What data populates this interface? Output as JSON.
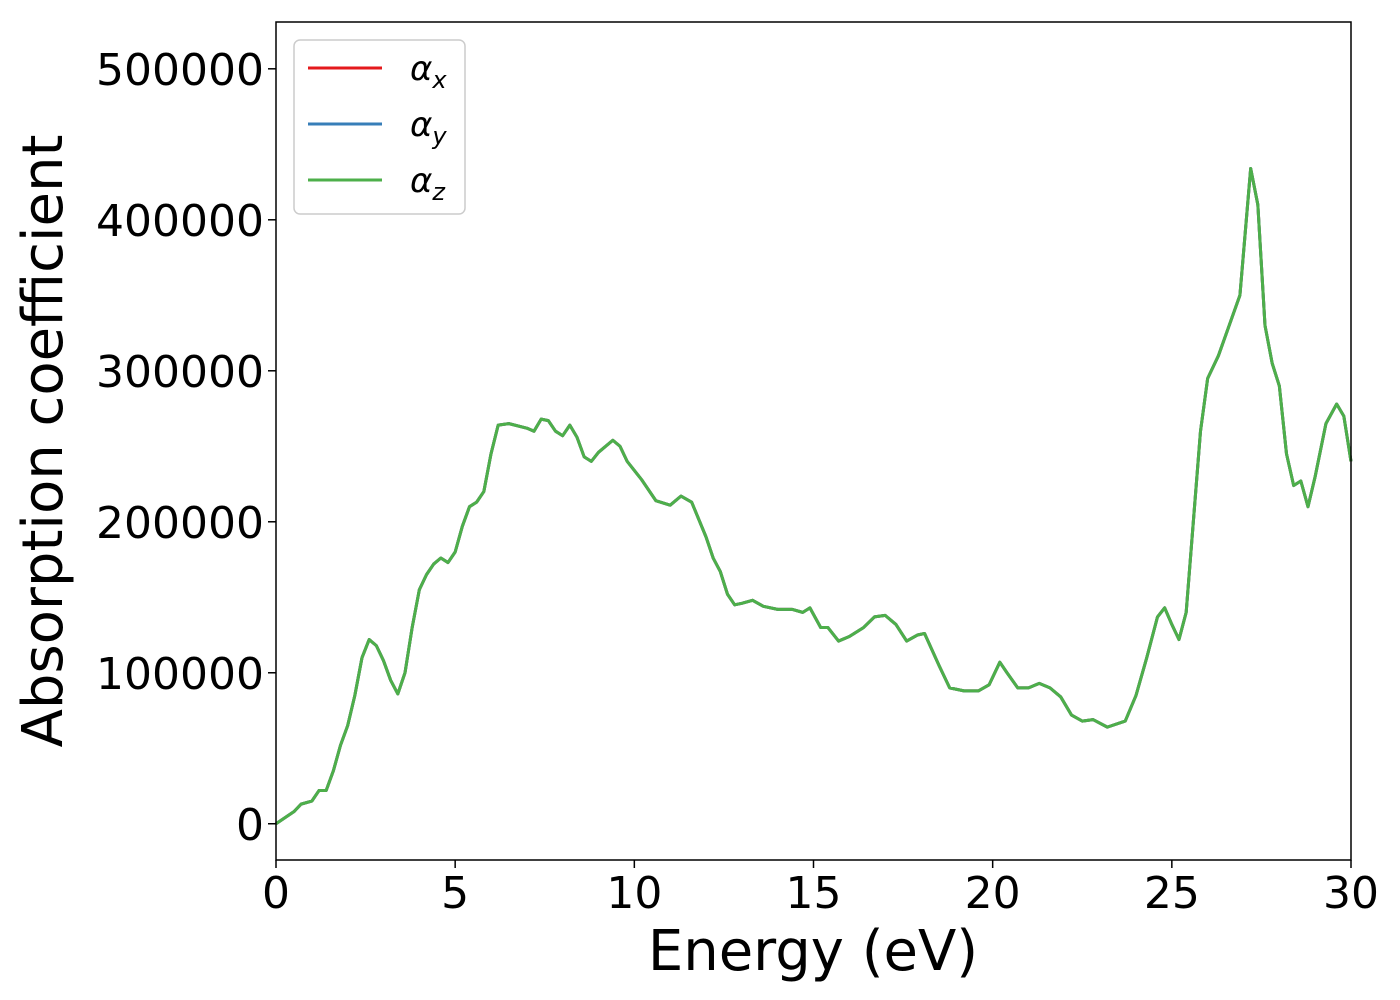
{
  "chart_data": {
    "type": "line",
    "xlabel": "Energy (eV)",
    "ylabel": "Absorption coefficient",
    "x": [
      0,
      0.5,
      0.7,
      1.0,
      1.2,
      1.4,
      1.6,
      1.8,
      2.0,
      2.2,
      2.4,
      2.6,
      2.8,
      3.0,
      3.2,
      3.4,
      3.6,
      3.8,
      4.0,
      4.2,
      4.4,
      4.6,
      4.8,
      5.0,
      5.2,
      5.4,
      5.6,
      5.8,
      6.0,
      6.2,
      6.5,
      7.0,
      7.2,
      7.4,
      7.6,
      7.8,
      8.0,
      8.2,
      8.4,
      8.6,
      8.8,
      9.0,
      9.4,
      9.6,
      9.8,
      10.2,
      10.6,
      11.0,
      11.3,
      11.6,
      12.0,
      12.2,
      12.4,
      12.6,
      12.8,
      13.0,
      13.3,
      13.6,
      14.0,
      14.4,
      14.7,
      14.9,
      15.2,
      15.4,
      15.7,
      16.0,
      16.4,
      16.7,
      17.0,
      17.3,
      17.6,
      17.9,
      18.1,
      18.5,
      18.8,
      19.2,
      19.6,
      19.9,
      20.2,
      20.4,
      20.7,
      21.0,
      21.3,
      21.6,
      21.9,
      22.2,
      22.5,
      22.8,
      23.2,
      23.7,
      24.0,
      24.3,
      24.6,
      24.8,
      25.0,
      25.2,
      25.4,
      25.6,
      25.8,
      26.0,
      26.3,
      26.6,
      26.9,
      27.2,
      27.4,
      27.6,
      27.8,
      28.0,
      28.2,
      28.4,
      28.6,
      28.8,
      29.0,
      29.3,
      29.6,
      29.8,
      30.0
    ],
    "series": [
      {
        "name": "αx",
        "color": "#e41a1c",
        "values": [
          0,
          8000,
          13000,
          15000,
          22000,
          22000,
          35000,
          52000,
          65000,
          85000,
          110000,
          122000,
          118000,
          108000,
          95000,
          86000,
          100000,
          130000,
          155000,
          165000,
          172000,
          176000,
          173000,
          180000,
          197000,
          210000,
          213000,
          220000,
          245000,
          264000,
          265000,
          262000,
          260000,
          268000,
          267000,
          260000,
          257000,
          264000,
          256000,
          243000,
          240000,
          246000,
          254000,
          250000,
          240000,
          228000,
          214000,
          211000,
          217000,
          213000,
          190000,
          176000,
          167000,
          152000,
          145000,
          146000,
          148000,
          144000,
          142000,
          142000,
          140000,
          143000,
          130000,
          130000,
          121000,
          124000,
          130000,
          137000,
          138000,
          132000,
          121000,
          125000,
          126000,
          105000,
          90000,
          88000,
          88000,
          92000,
          107000,
          100000,
          90000,
          90000,
          93000,
          90000,
          84000,
          72000,
          68000,
          69000,
          64000,
          68000,
          85000,
          110000,
          137000,
          143000,
          132000,
          122000,
          140000,
          200000,
          260000,
          295000,
          310000,
          330000,
          350000,
          434000,
          410000,
          330000,
          305000,
          290000,
          245000,
          224000,
          227000,
          210000,
          230000,
          265000,
          278000,
          270000,
          240000
        ]
      },
      {
        "name": "αy",
        "color": "#377eb8",
        "values": [
          0,
          8000,
          13000,
          15000,
          22000,
          22000,
          35000,
          52000,
          65000,
          85000,
          110000,
          122000,
          118000,
          108000,
          95000,
          86000,
          100000,
          130000,
          155000,
          165000,
          172000,
          176000,
          173000,
          180000,
          197000,
          210000,
          213000,
          220000,
          245000,
          264000,
          265000,
          262000,
          260000,
          268000,
          267000,
          260000,
          257000,
          264000,
          256000,
          243000,
          240000,
          246000,
          254000,
          250000,
          240000,
          228000,
          214000,
          211000,
          217000,
          213000,
          190000,
          176000,
          167000,
          152000,
          145000,
          146000,
          148000,
          144000,
          142000,
          142000,
          140000,
          143000,
          130000,
          130000,
          121000,
          124000,
          130000,
          137000,
          138000,
          132000,
          121000,
          125000,
          126000,
          105000,
          90000,
          88000,
          88000,
          92000,
          107000,
          100000,
          90000,
          90000,
          93000,
          90000,
          84000,
          72000,
          68000,
          69000,
          64000,
          68000,
          85000,
          110000,
          137000,
          143000,
          132000,
          122000,
          140000,
          200000,
          260000,
          295000,
          310000,
          330000,
          350000,
          434000,
          410000,
          330000,
          305000,
          290000,
          245000,
          224000,
          227000,
          210000,
          230000,
          265000,
          278000,
          270000,
          240000
        ]
      },
      {
        "name": "αz",
        "color": "#4daf4a",
        "values": [
          0,
          8000,
          13000,
          15000,
          22000,
          22000,
          35000,
          52000,
          65000,
          85000,
          110000,
          122000,
          118000,
          108000,
          95000,
          86000,
          100000,
          130000,
          155000,
          165000,
          172000,
          176000,
          173000,
          180000,
          197000,
          210000,
          213000,
          220000,
          245000,
          264000,
          265000,
          262000,
          260000,
          268000,
          267000,
          260000,
          257000,
          264000,
          256000,
          243000,
          240000,
          246000,
          254000,
          250000,
          240000,
          228000,
          214000,
          211000,
          217000,
          213000,
          190000,
          176000,
          167000,
          152000,
          145000,
          146000,
          148000,
          144000,
          142000,
          142000,
          140000,
          143000,
          130000,
          130000,
          121000,
          124000,
          130000,
          137000,
          138000,
          132000,
          121000,
          125000,
          126000,
          105000,
          90000,
          88000,
          88000,
          92000,
          107000,
          100000,
          90000,
          90000,
          93000,
          90000,
          84000,
          72000,
          68000,
          69000,
          64000,
          68000,
          85000,
          110000,
          137000,
          143000,
          132000,
          122000,
          140000,
          200000,
          260000,
          295000,
          310000,
          330000,
          350000,
          434000,
          410000,
          330000,
          305000,
          290000,
          245000,
          224000,
          227000,
          210000,
          230000,
          265000,
          278000,
          270000,
          240000
        ]
      }
    ],
    "xlim": [
      0,
      30
    ],
    "xticks": [
      0,
      5,
      10,
      15,
      20,
      25,
      30
    ],
    "ylim": [
      -24000,
      531000
    ],
    "yticks": [
      0,
      100000,
      200000,
      300000,
      400000,
      500000
    ],
    "grid": false,
    "legend": "upper left"
  }
}
